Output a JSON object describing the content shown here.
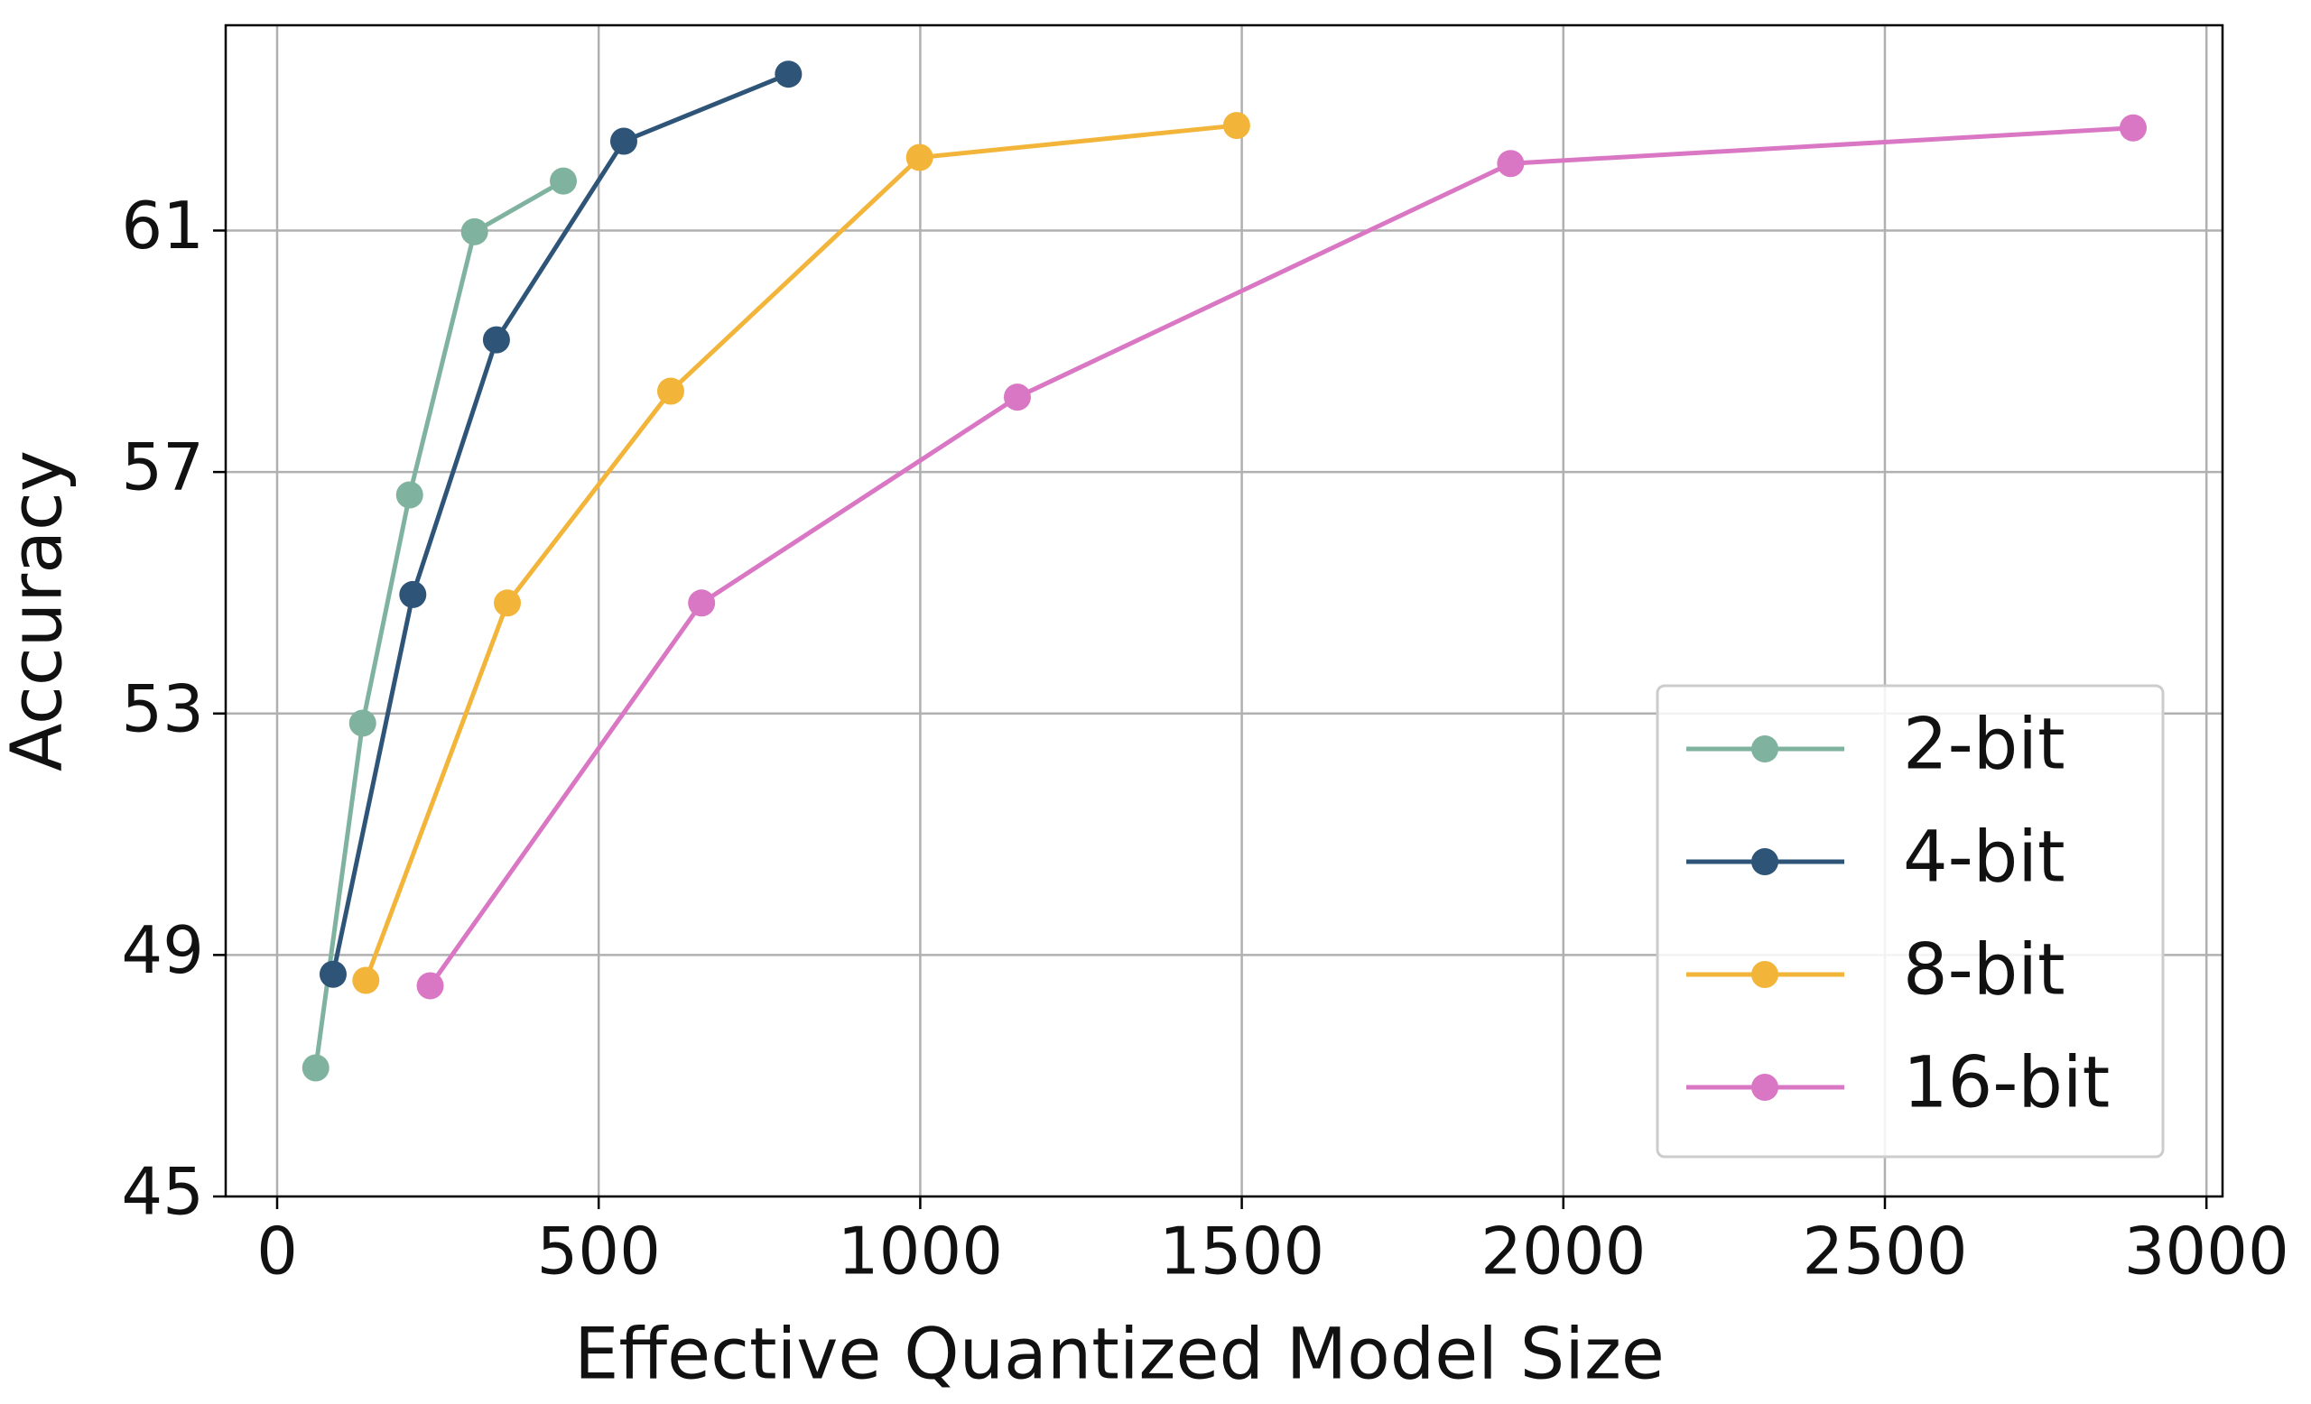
{
  "chart_data": {
    "type": "line",
    "xlabel": "Effective Quantized Model Size",
    "ylabel": "Accuracy",
    "xlim": [
      -80,
      3025
    ],
    "ylim": [
      45,
      64.4
    ],
    "xticks": [
      0,
      500,
      1000,
      1500,
      2000,
      2500,
      3000
    ],
    "yticks": [
      45,
      49,
      53,
      57,
      61
    ],
    "grid": true,
    "legend": "lower right",
    "series": [
      {
        "name": "2-bit",
        "color": "#7fb3a0",
        "x": [
          60,
          133,
          206,
          307,
          445
        ],
        "values": [
          47.13,
          52.84,
          56.62,
          60.98,
          61.82
        ]
      },
      {
        "name": "4-bit",
        "color": "#2e5478",
        "x": [
          87,
          211,
          341,
          539,
          795
        ],
        "values": [
          48.68,
          54.97,
          59.19,
          62.48,
          63.59
        ]
      },
      {
        "name": "8-bit",
        "color": "#f2b53a",
        "x": [
          138,
          358,
          612,
          999,
          1492
        ],
        "values": [
          48.58,
          54.83,
          58.34,
          62.21,
          62.74
        ]
      },
      {
        "name": "16-bit",
        "color": "#d977c4",
        "x": [
          238,
          660,
          1151,
          1918,
          2886
        ],
        "values": [
          48.49,
          54.83,
          58.24,
          62.11,
          62.7
        ]
      }
    ]
  }
}
